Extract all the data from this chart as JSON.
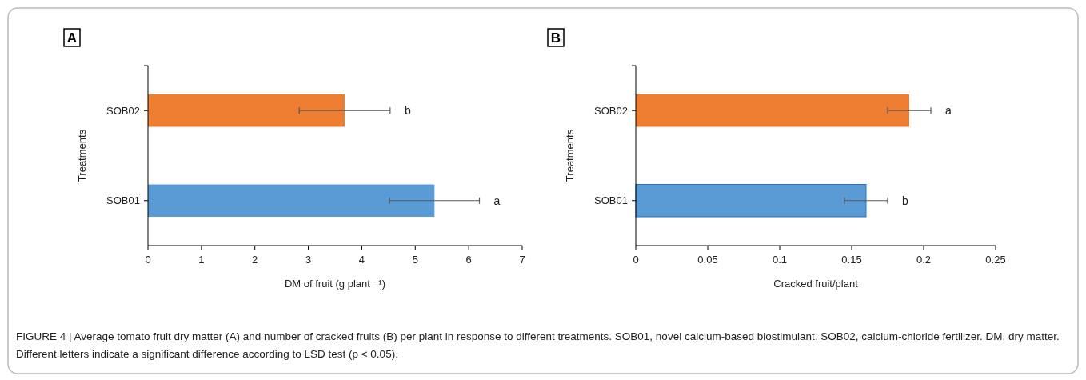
{
  "chart_data": [
    {
      "type": "bar",
      "orientation": "horizontal",
      "title": "A",
      "categories": [
        "SOB02",
        "SOB01"
      ],
      "values": [
        3.68,
        5.36
      ],
      "colors": [
        "#ed7d31",
        "#5b9bd5"
      ],
      "errors": [
        0.85,
        0.84
      ],
      "xlim": [
        0,
        7
      ],
      "xticks": [
        0,
        1,
        2,
        3,
        4,
        5,
        6,
        7
      ],
      "xlabel": "DM of fruit (g plant ⁻¹)",
      "ylabel": "Treatments",
      "grid": false,
      "annotations": [
        "b",
        "a",
        "FIGURE 4 | Average tomato fruit dry matter (A) and number of cracked fruits (B) per plant in response to different treatments. SOB01, novel calcium-based biostimulant. SOB02, calcium-chloride fertilizer. DM, dry matter. Different letters indicate a significant difference according to LSD test (p < 0.05)."
      ]
    },
    {
      "type": "bar",
      "orientation": "horizontal",
      "title": "B",
      "categories": [
        "SOB02",
        "SOB01"
      ],
      "values": [
        0.19,
        0.16
      ],
      "colors": [
        "#ed7d31",
        "#5b9bd5"
      ],
      "errors": [
        0.015,
        0.015
      ],
      "xlim": [
        0,
        0.25
      ],
      "xticks": [
        0,
        0.05,
        0.1,
        0.15,
        0.2,
        0.25
      ],
      "xlabel": "Cracked fruit/plant",
      "ylabel": "Treatments",
      "grid": false,
      "annotations": [
        "a",
        "b"
      ]
    }
  ]
}
